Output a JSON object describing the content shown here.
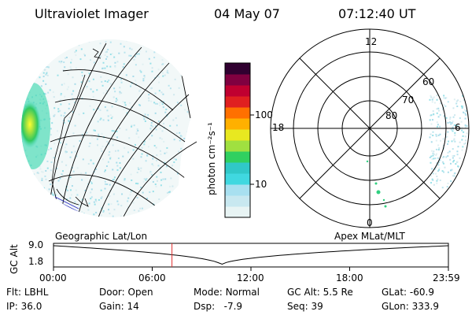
{
  "header": {
    "instrument": "Ultraviolet Imager",
    "date": "04 May 07",
    "time": "07:12:40 UT"
  },
  "colors": {
    "background": "#ffffff",
    "grid_lines": "#000000",
    "marker": "#e03030",
    "colorbar": [
      "#e8f4f4",
      "#c8e8f0",
      "#a8e0f0",
      "#40d8e0",
      "#30c8c8",
      "#30d060",
      "#a0e040",
      "#e8e820",
      "#ffb000",
      "#ff7000",
      "#e02020",
      "#c00030",
      "#800040",
      "#300030"
    ]
  },
  "colorbar": {
    "unit_label": "photon cm⁻²s⁻¹",
    "ticks": [
      "100",
      "10"
    ]
  },
  "left_panel": {
    "label": "Geographic Lat/Lon"
  },
  "right_panel": {
    "label": "Apex MLat/MLT",
    "mlt_labels": {
      "top": "12",
      "right": "6",
      "bottom": "0",
      "left": "18"
    },
    "mlat_labels": [
      "60",
      "70",
      "80"
    ]
  },
  "altitude_plot": {
    "ylabel": "GC Alt",
    "yticks": [
      "9.0",
      "1.8"
    ],
    "xticks": [
      "00:00",
      "06:00",
      "12:00",
      "18:00",
      "23:59"
    ],
    "current_time_hours": 7.2
  },
  "status": {
    "row1": [
      {
        "label": "Flt:",
        "value": "LBHL"
      },
      {
        "label": "Door:",
        "value": "Open"
      },
      {
        "label": "Mode:",
        "value": "Normal"
      },
      {
        "label": "GC Alt:",
        "value": "5.5 Re"
      },
      {
        "label": "GLat:",
        "value": "-60.9"
      }
    ],
    "row2": [
      {
        "label": "IP:",
        "value": "36.0"
      },
      {
        "label": "Gain:",
        "value": "14"
      },
      {
        "label": "Dsp:",
        "value": "-7.9"
      },
      {
        "label": "Seq:",
        "value": "39"
      },
      {
        "label": "GLon:",
        "value": "333.9"
      }
    ]
  }
}
